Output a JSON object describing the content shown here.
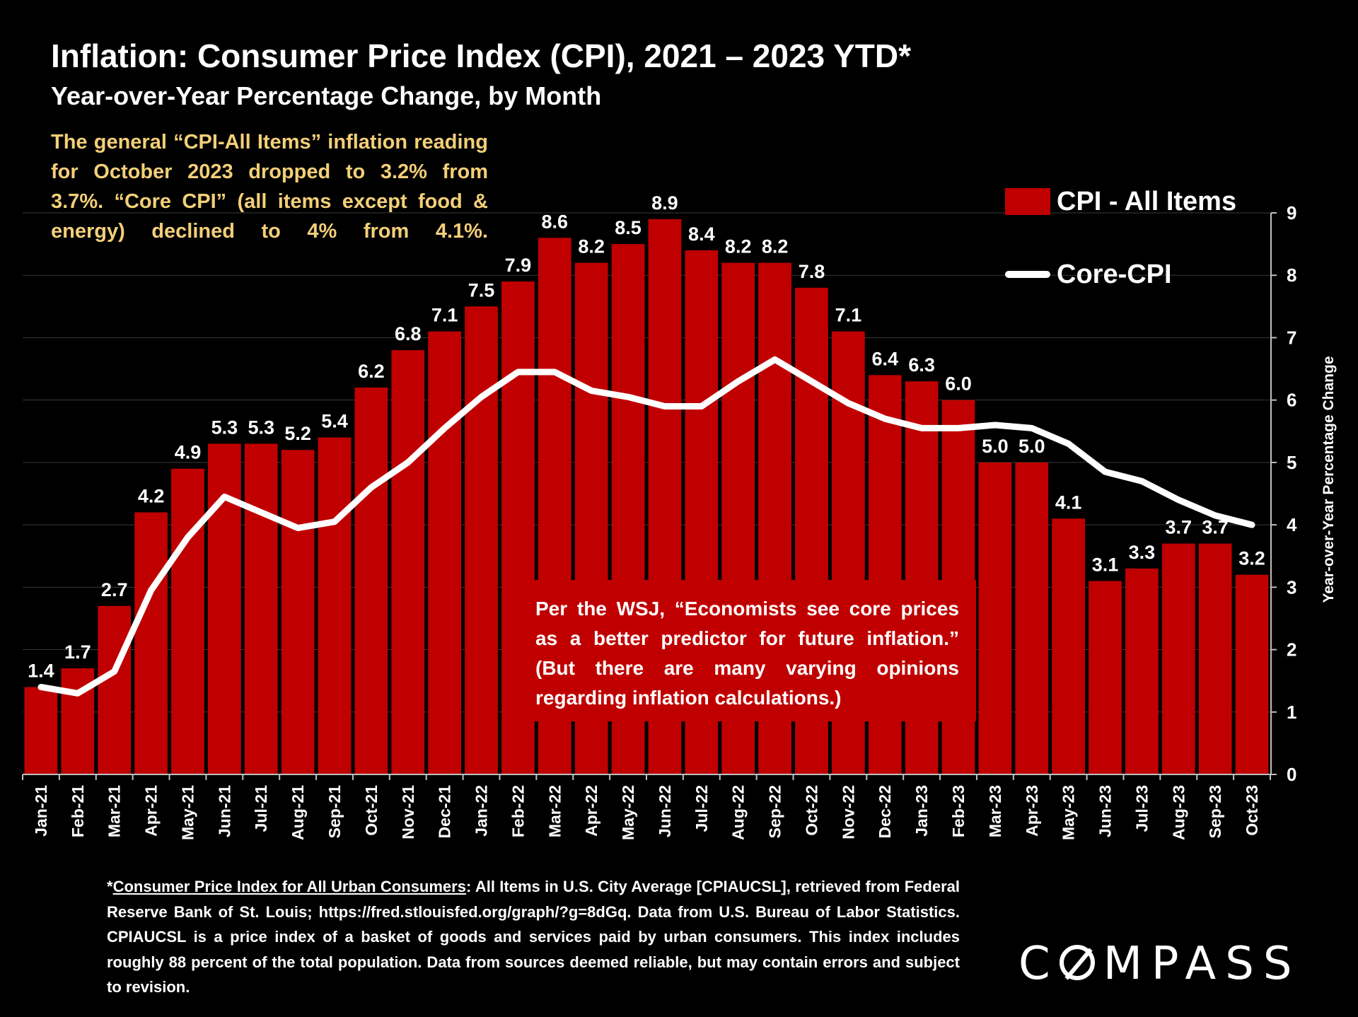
{
  "title": "Inflation: Consumer Price Index (CPI), 2021 – 2023 YTD*",
  "subtitle": "Year-over-Year Percentage Change, by Month",
  "intro_note": "The general “CPI-All Items” inflation reading for October 2023 dropped to 3.2% from 3.7%. “Core CPI” (all items except food & energy) declined to 4% from 4.1%.",
  "wsj_note": "Per the WSJ, “Economists see core prices as a better predictor for future inflation.” (But there are many varying opinions regarding inflation calculations.)",
  "footnote": {
    "star": "*",
    "link_text": "Consumer Price Index for All Urban Consumers",
    "text": ": All Items in U.S. City Average [CPIAUCSL], retrieved from Federal Reserve Bank of St. Louis; https://fred.stlouisfed.org/graph/?g=8dGq. Data from U.S. Bureau of Labor Statistics. CPIAUCSL is a price index of a basket of goods and services paid by urban consumers. This index includes roughly 88 percent of the total population. Data from sources deemed reliable, but may contain errors and subject to revision."
  },
  "logo": {
    "text": "COMPASS",
    "pre": "C",
    "o": "O",
    "post": "MPASS"
  },
  "colors": {
    "bar": "#c00000",
    "line": "#ffffff",
    "intro": "#f3cf78",
    "background": "#000000"
  },
  "chart_data": {
    "type": "bar",
    "categories": [
      "Jan-21",
      "Feb-21",
      "Mar-21",
      "Apr-21",
      "May-21",
      "Jun-21",
      "Jul-21",
      "Aug-21",
      "Sep-21",
      "Oct-21",
      "Nov-21",
      "Dec-21",
      "Jan-22",
      "Feb-22",
      "Mar-22",
      "Apr-22",
      "May-22",
      "Jun-22",
      "Jul-22",
      "Aug-22",
      "Sep-22",
      "Oct-22",
      "Nov-22",
      "Dec-22",
      "Jan-23",
      "Feb-23",
      "Mar-23",
      "Apr-23",
      "May-23",
      "Jun-23",
      "Jul-23",
      "Aug-23",
      "Sep-23",
      "Oct-23"
    ],
    "series": [
      {
        "name": "CPI - All Items",
        "type": "bar",
        "values": [
          1.4,
          1.7,
          2.7,
          4.2,
          4.9,
          5.3,
          5.3,
          5.2,
          5.4,
          6.2,
          6.8,
          7.1,
          7.5,
          7.9,
          8.6,
          8.2,
          8.5,
          8.9,
          8.4,
          8.2,
          8.2,
          7.8,
          7.1,
          6.4,
          6.3,
          6.0,
          5.0,
          5.0,
          4.1,
          3.1,
          3.3,
          3.7,
          3.7,
          3.2
        ],
        "data_labels": [
          "1.4",
          "1.7",
          "2.7",
          "4.2",
          "4.9",
          "5.3",
          "5.3",
          "5.2",
          "5.4",
          "6.2",
          "6.8",
          "7.1",
          "7.5",
          "7.9",
          "8.6",
          "8.2",
          "8.5",
          "8.9",
          "8.4",
          "8.2",
          "8.2",
          "7.8",
          "7.1",
          "6.4",
          "6.3",
          "6.0",
          "5.0",
          "5.0",
          "4.1",
          "3.1",
          "3.3",
          "3.7",
          "3.7",
          "3.2"
        ]
      },
      {
        "name": "Core-CPI",
        "type": "line",
        "values": [
          1.4,
          1.3,
          1.65,
          2.95,
          3.8,
          4.45,
          4.2,
          3.95,
          4.05,
          4.6,
          5.0,
          5.55,
          6.05,
          6.45,
          6.45,
          6.15,
          6.05,
          5.9,
          5.9,
          6.3,
          6.65,
          6.3,
          5.95,
          5.7,
          5.55,
          5.55,
          5.6,
          5.55,
          5.3,
          4.85,
          4.7,
          4.4,
          4.15,
          4.0
        ]
      }
    ],
    "ylabel": "Year-over-Year Percentage Change",
    "ylim": [
      0,
      9
    ],
    "yticks": [
      0,
      1,
      2,
      3,
      4,
      5,
      6,
      7,
      8,
      9
    ],
    "y_axis_side": "right",
    "grid": true,
    "legend_placement": "top-right"
  }
}
